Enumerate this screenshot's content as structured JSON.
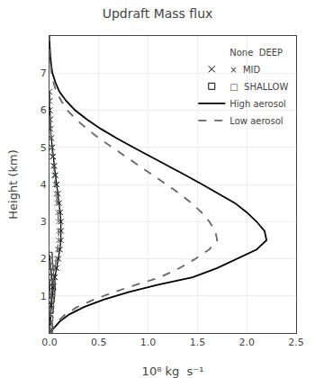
{
  "chart_data": {
    "type": "line",
    "title": "Updraft Mass flux",
    "xlabel": "10⁸ kg  s⁻¹",
    "ylabel": "Height (km)",
    "xlim": [
      0,
      2.5
    ],
    "ylim": [
      0,
      8.0
    ],
    "xticks": [
      {
        "value": 0,
        "label": "0.0"
      },
      0.5,
      {
        "value": 1.0,
        "label": "1.0"
      },
      1.5,
      {
        "value": 2.0,
        "label": "2.0"
      },
      2.5
    ],
    "yticks": [
      1,
      2,
      3,
      4,
      5,
      6,
      7
    ],
    "grid": true,
    "legend": "upper right",
    "series": [
      {
        "color": "#000000",
        "line_style": "solid",
        "marker": "none",
        "x": [
          0.0,
          0.05,
          0.1,
          0.2,
          0.35,
          0.55,
          0.8,
          1.1,
          1.45,
          1.7,
          1.9,
          2.1,
          2.2,
          2.18,
          2.1,
          2.0,
          1.88,
          1.72,
          1.55,
          1.38,
          1.2,
          1.02,
          0.85,
          0.68,
          0.52,
          0.38,
          0.26,
          0.17,
          0.1,
          0.06,
          0.03,
          0.015,
          0.005,
          0.001,
          0.0
        ],
        "values": [
          0.0,
          0.15,
          0.3,
          0.5,
          0.7,
          0.9,
          1.1,
          1.3,
          1.5,
          1.75,
          2.0,
          2.25,
          2.5,
          2.75,
          3.0,
          3.25,
          3.5,
          3.75,
          4.0,
          4.25,
          4.5,
          4.75,
          5.0,
          5.25,
          5.5,
          5.75,
          6.0,
          6.25,
          6.5,
          6.75,
          7.0,
          7.25,
          7.5,
          7.75,
          8.0
        ]
      },
      {
        "color": "#666666",
        "line_style": "dashed",
        "marker": "none",
        "x": [
          0.0,
          0.04,
          0.08,
          0.16,
          0.28,
          0.45,
          0.65,
          0.88,
          1.12,
          1.32,
          1.48,
          1.62,
          1.7,
          1.68,
          1.62,
          1.54,
          1.44,
          1.32,
          1.19,
          1.05,
          0.91,
          0.77,
          0.63,
          0.5,
          0.38,
          0.27,
          0.18,
          0.12,
          0.07,
          0.04,
          0.02,
          0.01,
          0.003,
          0.001,
          0.0
        ],
        "values": [
          0.0,
          0.15,
          0.3,
          0.5,
          0.7,
          0.9,
          1.1,
          1.3,
          1.5,
          1.75,
          2.0,
          2.25,
          2.5,
          2.75,
          3.0,
          3.25,
          3.5,
          3.75,
          4.0,
          4.25,
          4.5,
          4.75,
          5.0,
          5.25,
          5.5,
          5.75,
          6.0,
          6.25,
          6.5,
          6.75,
          7.0,
          7.25,
          7.5,
          7.75,
          8.0
        ]
      },
      {
        "color": "#000000",
        "line_style": "solid",
        "marker": "x",
        "x": [
          0.0,
          0.005,
          0.01,
          0.018,
          0.028,
          0.04,
          0.055,
          0.072,
          0.09,
          0.105,
          0.115,
          0.118,
          0.115,
          0.108,
          0.098,
          0.086,
          0.073,
          0.06,
          0.048,
          0.037,
          0.027,
          0.018,
          0.011,
          0.006,
          0.003,
          0.001,
          0.0
        ],
        "values": [
          0.0,
          0.25,
          0.5,
          0.75,
          1.0,
          1.25,
          1.5,
          1.75,
          2.0,
          2.25,
          2.5,
          2.75,
          3.0,
          3.25,
          3.5,
          3.75,
          4.0,
          4.25,
          4.5,
          4.75,
          5.0,
          5.25,
          5.5,
          5.75,
          6.0,
          6.25,
          6.5
        ]
      },
      {
        "color": "#666666",
        "line_style": "dashed",
        "marker": "x",
        "x": [
          0.0,
          0.004,
          0.008,
          0.014,
          0.022,
          0.032,
          0.044,
          0.058,
          0.072,
          0.084,
          0.092,
          0.094,
          0.092,
          0.086,
          0.078,
          0.069,
          0.058,
          0.048,
          0.038,
          0.029,
          0.021,
          0.014,
          0.009,
          0.005,
          0.002,
          0.001,
          0.0
        ],
        "values": [
          0.0,
          0.25,
          0.5,
          0.75,
          1.0,
          1.25,
          1.5,
          1.75,
          2.0,
          2.25,
          2.5,
          2.75,
          3.0,
          3.25,
          3.5,
          3.75,
          4.0,
          4.25,
          4.5,
          4.75,
          5.0,
          5.25,
          5.5,
          5.75,
          6.0,
          6.25,
          6.5
        ]
      },
      {
        "color": "#000000",
        "line_style": "solid",
        "marker": "square",
        "x": [
          0.0,
          0.003,
          0.006,
          0.01,
          0.015,
          0.02,
          0.026,
          0.03,
          0.028,
          0.022,
          0.015,
          0.008,
          0.003,
          0.0
        ],
        "values": [
          0.0,
          0.2,
          0.4,
          0.6,
          0.75,
          0.9,
          1.05,
          1.2,
          1.35,
          1.5,
          1.65,
          1.8,
          1.95,
          2.1
        ]
      },
      {
        "color": "#666666",
        "line_style": "dashed",
        "marker": "square",
        "x": [
          0.0,
          0.002,
          0.005,
          0.008,
          0.012,
          0.016,
          0.02,
          0.024,
          0.022,
          0.017,
          0.012,
          0.006,
          0.002,
          0.0
        ],
        "values": [
          0.0,
          0.2,
          0.4,
          0.6,
          0.75,
          0.9,
          1.05,
          1.2,
          1.35,
          1.5,
          1.65,
          1.8,
          1.95,
          2.1
        ]
      }
    ],
    "legend_entries": [
      {
        "label": "None  DEEP",
        "marker": "none",
        "line_style": "none",
        "color": "#000000"
      },
      {
        "label": "×  MID",
        "marker": "x",
        "line_style": "none",
        "color": "#000000"
      },
      {
        "label": "□  SHALLOW",
        "marker": "square",
        "line_style": "none",
        "color": "#000000"
      },
      {
        "label": "High aerosol",
        "marker": "none",
        "line_style": "solid",
        "color": "#000000"
      },
      {
        "label": "Low aerosol",
        "marker": "none",
        "line_style": "dashed",
        "color": "#666666"
      }
    ]
  }
}
